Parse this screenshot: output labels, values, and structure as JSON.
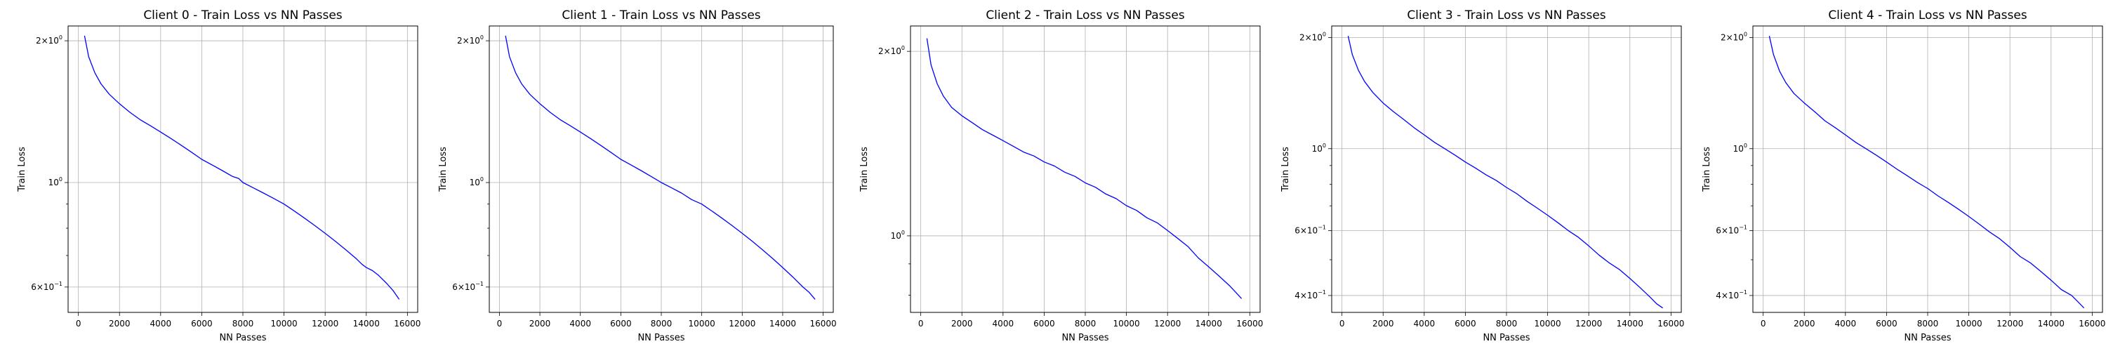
{
  "figure": {
    "grid_color": "#b0b0b0",
    "line_color": "#0000ff"
  },
  "chart_data": [
    {
      "type": "line",
      "title": "Client 0 - Train Loss vs NN Passes",
      "xlabel": "NN Passes",
      "ylabel": "Train Loss",
      "yscale": "log",
      "grid": true,
      "xlim": [
        -500,
        16500
      ],
      "ylim": [
        0.53,
        2.15
      ],
      "xticks": [
        0,
        2000,
        4000,
        6000,
        8000,
        10000,
        12000,
        14000,
        16000
      ],
      "yticks": [
        {
          "value": 2.0,
          "label": "2×10",
          "exp": "0"
        },
        {
          "value": 1.0,
          "label": "10",
          "exp": "0"
        },
        {
          "value": 0.6,
          "label": "6×10",
          "exp": "−1"
        }
      ],
      "minor_yticks": [
        0.7,
        0.8,
        0.9
      ],
      "series": [
        {
          "color": "#0000ff",
          "x": [
            300,
            500,
            800,
            1100,
            1500,
            2000,
            2500,
            3000,
            3500,
            4000,
            4500,
            5000,
            5500,
            6000,
            6500,
            7000,
            7500,
            7800,
            8000,
            8500,
            9000,
            9500,
            10000,
            10500,
            11000,
            11500,
            12000,
            12500,
            13000,
            13500,
            13800,
            14000,
            14300,
            14600,
            15000,
            15300,
            15600
          ],
          "y": [
            2.05,
            1.85,
            1.71,
            1.62,
            1.54,
            1.47,
            1.41,
            1.36,
            1.32,
            1.28,
            1.24,
            1.2,
            1.16,
            1.12,
            1.09,
            1.06,
            1.03,
            1.02,
            1.0,
            0.975,
            0.95,
            0.925,
            0.9,
            0.87,
            0.84,
            0.81,
            0.78,
            0.75,
            0.72,
            0.69,
            0.67,
            0.66,
            0.65,
            0.635,
            0.61,
            0.59,
            0.565
          ]
        }
      ]
    },
    {
      "type": "line",
      "title": "Client 1 - Train Loss vs NN Passes",
      "xlabel": "NN Passes",
      "ylabel": "Train Loss",
      "yscale": "log",
      "grid": true,
      "xlim": [
        -500,
        16500
      ],
      "ylim": [
        0.53,
        2.15
      ],
      "xticks": [
        0,
        2000,
        4000,
        6000,
        8000,
        10000,
        12000,
        14000,
        16000
      ],
      "yticks": [
        {
          "value": 2.0,
          "label": "2×10",
          "exp": "0"
        },
        {
          "value": 1.0,
          "label": "10",
          "exp": "0"
        },
        {
          "value": 0.6,
          "label": "6×10",
          "exp": "−1"
        }
      ],
      "minor_yticks": [
        0.7,
        0.8,
        0.9
      ],
      "series": [
        {
          "color": "#0000ff",
          "x": [
            300,
            500,
            800,
            1100,
            1500,
            2000,
            2500,
            3000,
            3500,
            4000,
            4500,
            5000,
            5500,
            6000,
            6500,
            7000,
            7500,
            8000,
            8500,
            9000,
            9500,
            10000,
            10500,
            11000,
            11500,
            12000,
            12500,
            13000,
            13500,
            14000,
            14500,
            15000,
            15300,
            15600
          ],
          "y": [
            2.05,
            1.85,
            1.71,
            1.62,
            1.54,
            1.47,
            1.41,
            1.36,
            1.32,
            1.28,
            1.24,
            1.2,
            1.16,
            1.12,
            1.09,
            1.06,
            1.03,
            1.0,
            0.975,
            0.95,
            0.92,
            0.9,
            0.87,
            0.84,
            0.81,
            0.78,
            0.75,
            0.72,
            0.69,
            0.66,
            0.63,
            0.6,
            0.585,
            0.565
          ]
        }
      ]
    },
    {
      "type": "line",
      "title": "Client 2 - Train Loss vs NN Passes",
      "xlabel": "NN Passes",
      "ylabel": "Train Loss",
      "yscale": "log",
      "grid": true,
      "xlim": [
        -500,
        16500
      ],
      "ylim": [
        0.75,
        2.2
      ],
      "xticks": [
        0,
        2000,
        4000,
        6000,
        8000,
        10000,
        12000,
        14000,
        16000
      ],
      "yticks": [
        {
          "value": 2.0,
          "label": "2×10",
          "exp": "0"
        },
        {
          "value": 1.0,
          "label": "10",
          "exp": "0"
        }
      ],
      "minor_yticks": [
        0.8,
        0.9
      ],
      "series": [
        {
          "color": "#0000ff",
          "x": [
            300,
            500,
            800,
            1100,
            1500,
            2000,
            2500,
            3000,
            3500,
            4000,
            4500,
            5000,
            5500,
            6000,
            6500,
            7000,
            7500,
            8000,
            8500,
            9000,
            9500,
            10000,
            10500,
            11000,
            11500,
            12000,
            12500,
            13000,
            13500,
            14000,
            14500,
            15000,
            15300,
            15600
          ],
          "y": [
            2.1,
            1.9,
            1.77,
            1.69,
            1.62,
            1.57,
            1.53,
            1.49,
            1.46,
            1.43,
            1.4,
            1.37,
            1.35,
            1.32,
            1.3,
            1.27,
            1.25,
            1.22,
            1.2,
            1.17,
            1.15,
            1.12,
            1.1,
            1.07,
            1.05,
            1.02,
            0.99,
            0.96,
            0.92,
            0.89,
            0.86,
            0.83,
            0.81,
            0.79
          ]
        }
      ]
    },
    {
      "type": "line",
      "title": "Client 3 - Train Loss vs NN Passes",
      "xlabel": "NN Passes",
      "ylabel": "Train Loss",
      "yscale": "log",
      "grid": true,
      "xlim": [
        -500,
        16500
      ],
      "ylim": [
        0.36,
        2.15
      ],
      "xticks": [
        0,
        2000,
        4000,
        6000,
        8000,
        10000,
        12000,
        14000,
        16000
      ],
      "yticks": [
        {
          "value": 2.0,
          "label": "2×10",
          "exp": "0"
        },
        {
          "value": 1.0,
          "label": "10",
          "exp": "0"
        },
        {
          "value": 0.6,
          "label": "6×10",
          "exp": "−1"
        },
        {
          "value": 0.4,
          "label": "4×10",
          "exp": "−1"
        }
      ],
      "minor_yticks": [
        0.5,
        0.7,
        0.8,
        0.9,
        3.0
      ],
      "series": [
        {
          "color": "#0000ff",
          "x": [
            300,
            500,
            800,
            1100,
            1500,
            2000,
            2500,
            3000,
            3500,
            4000,
            4500,
            5000,
            5500,
            6000,
            6500,
            7000,
            7500,
            8000,
            8500,
            9000,
            9500,
            10000,
            10500,
            11000,
            11500,
            12000,
            12500,
            13000,
            13500,
            14000,
            14500,
            15000,
            15300,
            15600
          ],
          "y": [
            2.02,
            1.8,
            1.63,
            1.52,
            1.42,
            1.33,
            1.26,
            1.2,
            1.14,
            1.09,
            1.04,
            1.0,
            0.96,
            0.92,
            0.885,
            0.85,
            0.82,
            0.785,
            0.755,
            0.72,
            0.69,
            0.66,
            0.63,
            0.6,
            0.575,
            0.545,
            0.515,
            0.49,
            0.47,
            0.445,
            0.42,
            0.395,
            0.38,
            0.37
          ]
        }
      ]
    },
    {
      "type": "line",
      "title": "Client 4 - Train Loss vs NN Passes",
      "xlabel": "NN Passes",
      "ylabel": "Train Loss",
      "yscale": "log",
      "grid": true,
      "xlim": [
        -500,
        16500
      ],
      "ylim": [
        0.36,
        2.15
      ],
      "xticks": [
        0,
        2000,
        4000,
        6000,
        8000,
        10000,
        12000,
        14000,
        16000
      ],
      "yticks": [
        {
          "value": 2.0,
          "label": "2×10",
          "exp": "0"
        },
        {
          "value": 1.0,
          "label": "10",
          "exp": "0"
        },
        {
          "value": 0.6,
          "label": "6×10",
          "exp": "−1"
        },
        {
          "value": 0.4,
          "label": "4×10",
          "exp": "−1"
        }
      ],
      "minor_yticks": [
        0.5,
        0.7,
        0.8,
        0.9
      ],
      "series": [
        {
          "color": "#0000ff",
          "x": [
            300,
            500,
            800,
            1100,
            1500,
            2000,
            2500,
            3000,
            3500,
            4000,
            4500,
            5000,
            5500,
            6000,
            6500,
            7000,
            7500,
            8000,
            8500,
            9000,
            9500,
            10000,
            10500,
            11000,
            11500,
            12000,
            12500,
            13000,
            13500,
            14000,
            14500,
            15000,
            15300,
            15600
          ],
          "y": [
            2.02,
            1.8,
            1.62,
            1.51,
            1.41,
            1.33,
            1.26,
            1.19,
            1.14,
            1.09,
            1.04,
            1.0,
            0.96,
            0.92,
            0.88,
            0.845,
            0.81,
            0.78,
            0.745,
            0.715,
            0.685,
            0.655,
            0.625,
            0.595,
            0.57,
            0.54,
            0.51,
            0.49,
            0.465,
            0.44,
            0.415,
            0.4,
            0.385,
            0.37
          ]
        }
      ]
    }
  ]
}
